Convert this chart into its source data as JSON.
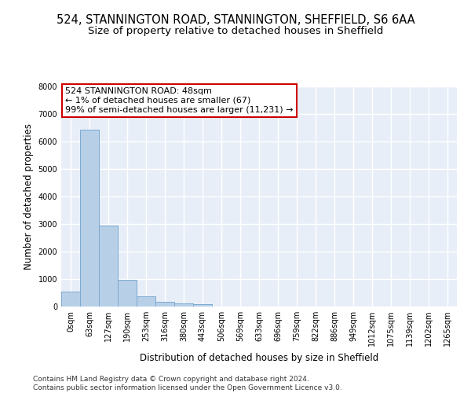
{
  "title_line1": "524, STANNINGTON ROAD, STANNINGTON, SHEFFIELD, S6 6AA",
  "title_line2": "Size of property relative to detached houses in Sheffield",
  "xlabel": "Distribution of detached houses by size in Sheffield",
  "ylabel": "Number of detached properties",
  "bar_color": "#b8cfe8",
  "bar_edge_color": "#7aaad0",
  "background_color": "#e8eef8",
  "grid_color": "#ffffff",
  "categories": [
    "0sqm",
    "63sqm",
    "127sqm",
    "190sqm",
    "253sqm",
    "316sqm",
    "380sqm",
    "443sqm",
    "506sqm",
    "569sqm",
    "633sqm",
    "696sqm",
    "759sqm",
    "822sqm",
    "886sqm",
    "949sqm",
    "1012sqm",
    "1075sqm",
    "1139sqm",
    "1202sqm",
    "1265sqm"
  ],
  "values": [
    550,
    6430,
    2930,
    980,
    380,
    175,
    120,
    75,
    0,
    0,
    0,
    0,
    0,
    0,
    0,
    0,
    0,
    0,
    0,
    0,
    0
  ],
  "ylim": [
    0,
    8000
  ],
  "yticks": [
    0,
    1000,
    2000,
    3000,
    4000,
    5000,
    6000,
    7000,
    8000
  ],
  "annotation_text_line1": "524 STANNINGTON ROAD: 48sqm",
  "annotation_text_line2": "← 1% of detached houses are smaller (67)",
  "annotation_text_line3": "99% of semi-detached houses are larger (11,231) →",
  "annotation_fontsize": 8.0,
  "annotation_box_color": "white",
  "annotation_box_edge": "#cc0000",
  "footer_line1": "Contains HM Land Registry data © Crown copyright and database right 2024.",
  "footer_line2": "Contains public sector information licensed under the Open Government Licence v3.0.",
  "title1_fontsize": 10.5,
  "title2_fontsize": 9.5,
  "xlabel_fontsize": 8.5,
  "ylabel_fontsize": 8.5,
  "tick_fontsize": 7.0,
  "footer_fontsize": 6.5
}
